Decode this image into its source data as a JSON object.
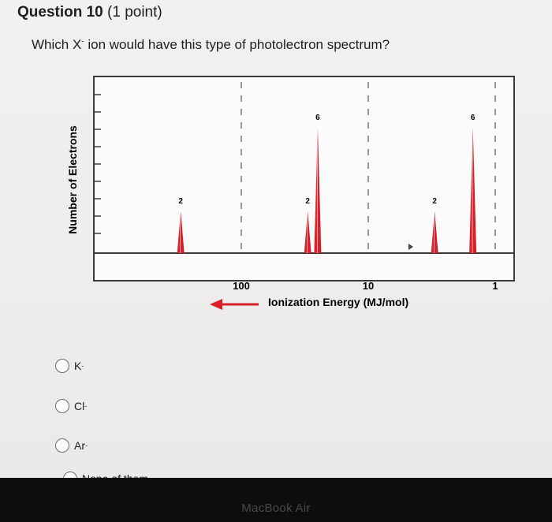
{
  "question": {
    "number_label": "Question 10",
    "points_label": "(1 point)",
    "text_before": "Which X",
    "text_sup": "-",
    "text_after": " ion would have this type of photolectron spectrum?"
  },
  "chart_data": {
    "type": "bar",
    "ylabel": "Number of Electrons",
    "xlabel": "Ionization Energy (MJ/mol)",
    "x_scale": "log",
    "x_direction": "decreasing",
    "x_ticks": [
      "100",
      "10",
      "1"
    ],
    "peaks": [
      {
        "energy": 300,
        "electrons": 2
      },
      {
        "energy": 30,
        "electrons": 2
      },
      {
        "energy": 25,
        "electrons": 6
      },
      {
        "energy": 3,
        "electrons": 2
      },
      {
        "energy": 1.5,
        "electrons": 6
      }
    ],
    "peak_color": "#d8202a",
    "arrow_color": "#d8202a"
  },
  "choices": [
    {
      "base": "K",
      "sup": "-"
    },
    {
      "base": "Cl",
      "sup": "-"
    },
    {
      "base": "Ar",
      "sup": "-"
    },
    {
      "base": "None of them",
      "sup": ""
    }
  ],
  "device": {
    "brand": "MacBook Air"
  }
}
